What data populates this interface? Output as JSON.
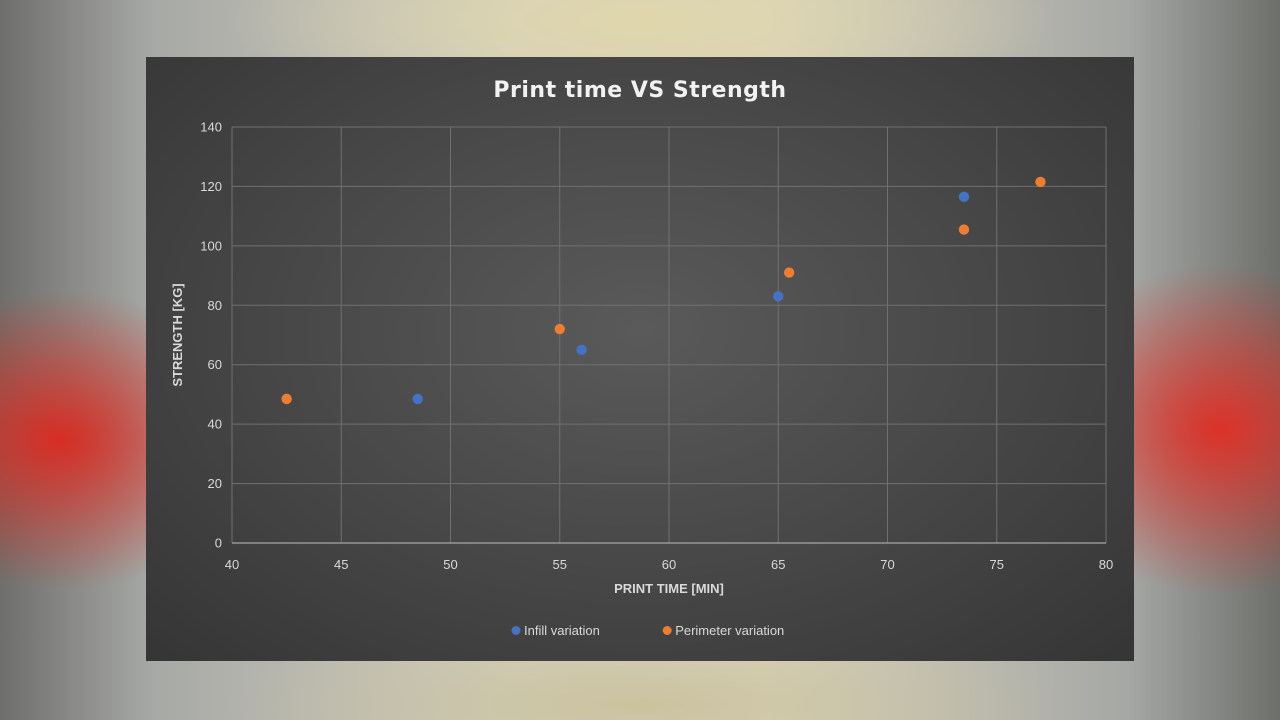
{
  "chart_data": {
    "type": "scatter",
    "title": "Print time VS Strength",
    "xlabel": "PRINT TIME [MIN]",
    "ylabel": "STRENGTH [KG]",
    "xlim": [
      40,
      80
    ],
    "ylim": [
      0,
      140
    ],
    "x_ticks": [
      40,
      45,
      50,
      55,
      60,
      65,
      70,
      75,
      80
    ],
    "y_ticks": [
      0,
      20,
      40,
      60,
      80,
      100,
      120,
      140
    ],
    "grid": true,
    "legend_position": "bottom",
    "series": [
      {
        "name": "Infill variation",
        "color": "#4472c4",
        "x": [
          48.5,
          56,
          65,
          73.5
        ],
        "y": [
          48.5,
          65,
          83,
          116.5
        ]
      },
      {
        "name": "Perimeter variation",
        "color": "#ed7d31",
        "x": [
          42.5,
          55,
          65.5,
          73.5,
          77
        ],
        "y": [
          48.5,
          72,
          91,
          105.5,
          121.5
        ]
      }
    ]
  }
}
